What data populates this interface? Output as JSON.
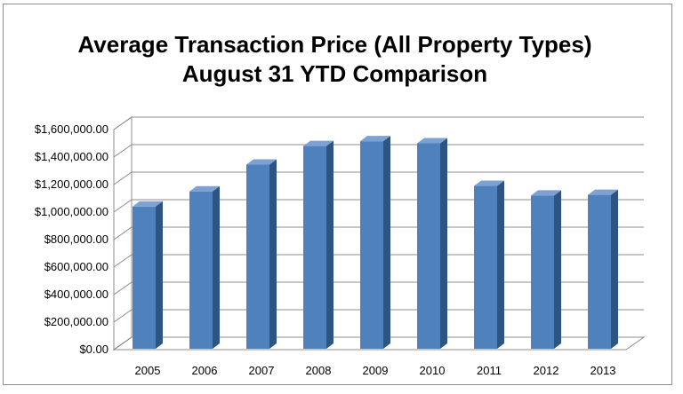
{
  "chart_data": {
    "type": "bar",
    "title_lines": [
      "Average Transaction Price (All Property Types)",
      "August 31 YTD Comparison"
    ],
    "categories": [
      "2005",
      "2006",
      "2007",
      "2008",
      "2009",
      "2010",
      "2011",
      "2012",
      "2013"
    ],
    "values": [
      1040000,
      1150000,
      1345000,
      1480000,
      1515000,
      1500000,
      1190000,
      1120000,
      1125000
    ],
    "ylim": [
      0,
      1600000
    ],
    "y_ticks": [
      "$0.00",
      "$200,000.00",
      "$400,000.00",
      "$600,000.00",
      "$800,000.00",
      "$1,000,000.00",
      "$1,200,000.00",
      "$1,400,000.00",
      "$1,600,000.00"
    ],
    "grid": true,
    "legend": "none",
    "colors": {
      "bar_front": "#4f81bd",
      "bar_side": "#2f5480",
      "bar_top": "#7ea1d3",
      "grid": "#8c8c8c"
    }
  }
}
